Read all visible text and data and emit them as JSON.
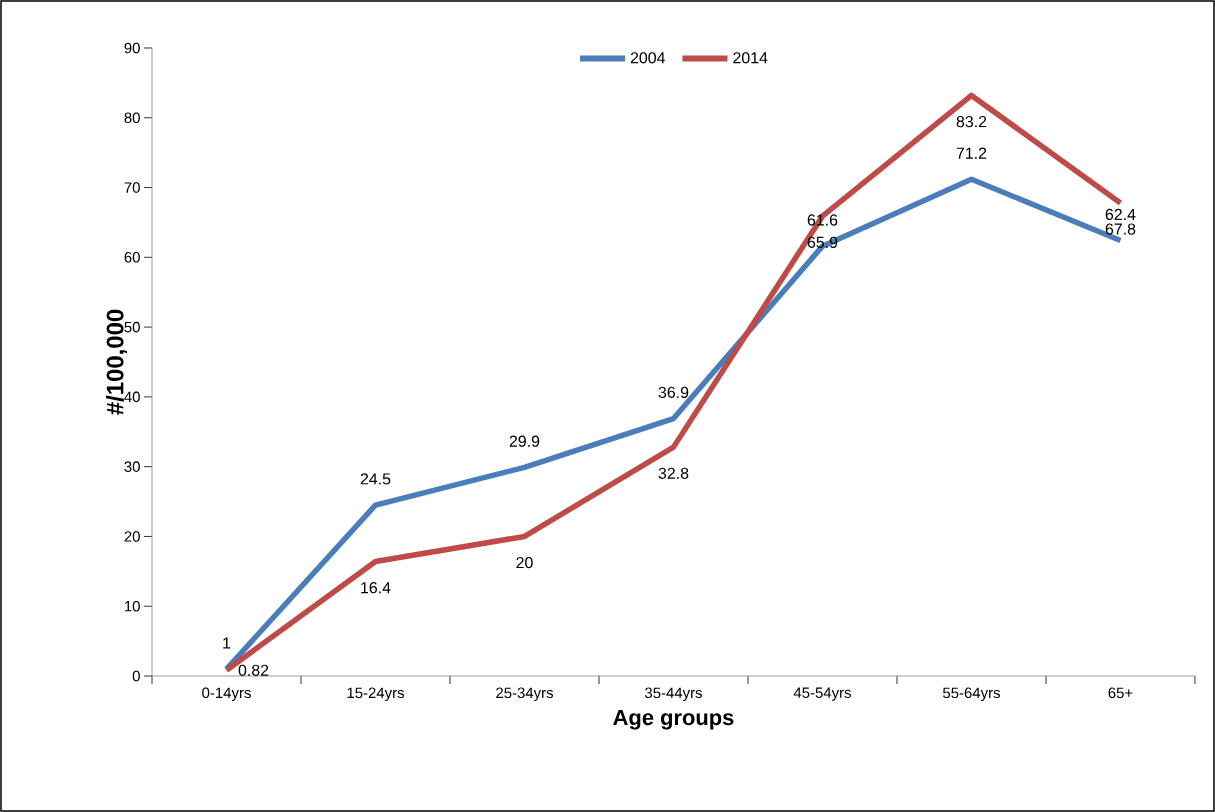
{
  "chart_data": {
    "type": "line",
    "xlabel": "Age groups",
    "ylabel": "#/100,000",
    "categories": [
      "0-14yrs",
      "15-24yrs",
      "25-34yrs",
      "35-44yrs",
      "45-54yrs",
      "55-64yrs",
      "65+"
    ],
    "series": [
      {
        "name": "2004",
        "color": "#4a7ebb",
        "values": [
          1,
          24.5,
          29.9,
          36.9,
          61.6,
          71.2,
          62.4
        ]
      },
      {
        "name": "2014",
        "color": "#be4b48",
        "values": [
          0.82,
          16.4,
          20,
          32.8,
          65.9,
          83.2,
          67.8
        ]
      }
    ],
    "ylim": [
      0,
      90
    ],
    "yticks": [
      0,
      10,
      20,
      30,
      40,
      50,
      60,
      70,
      80,
      90
    ],
    "data_labels": true,
    "legend": "top",
    "grid": false,
    "marker": "none",
    "line_style": "solid"
  }
}
